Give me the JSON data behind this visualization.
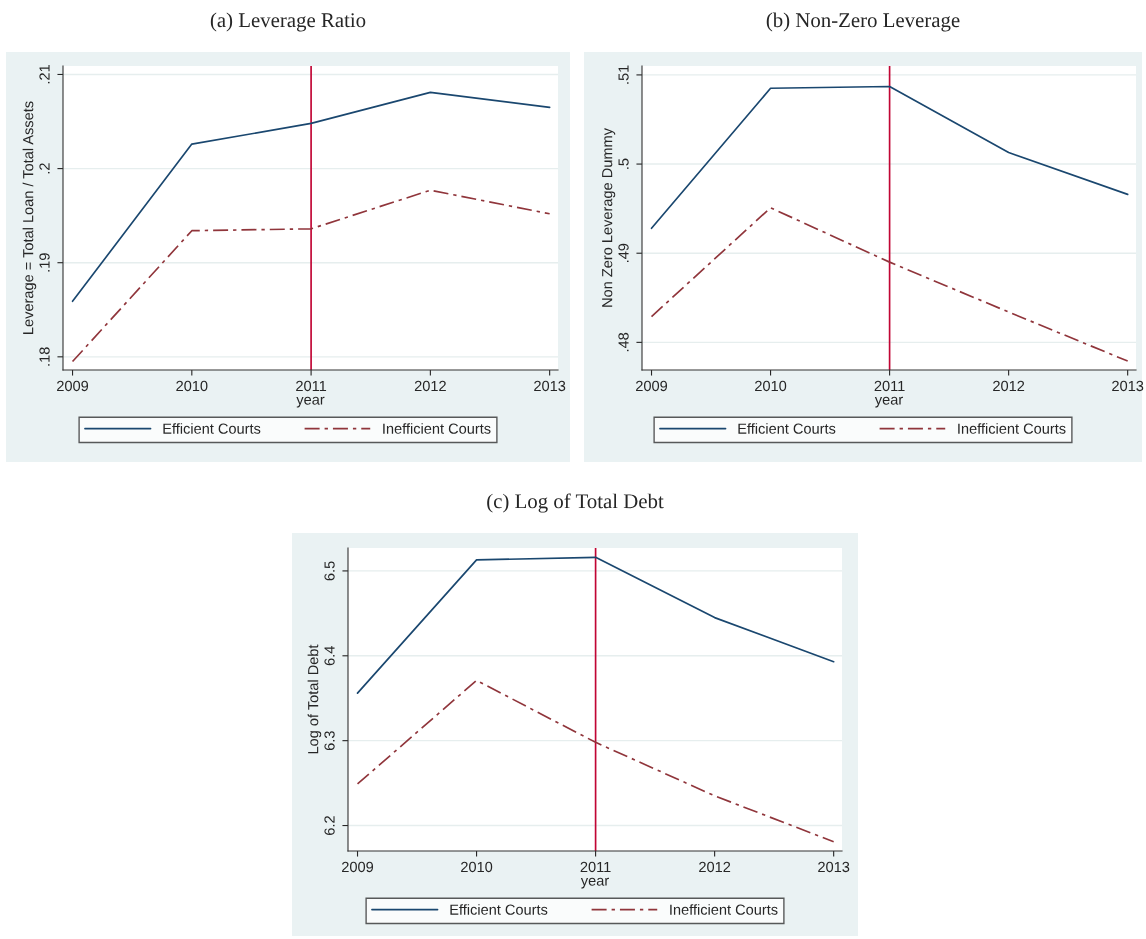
{
  "chart_data": [
    {
      "type": "line",
      "title": "(a) Leverage Ratio",
      "xlabel": "year",
      "ylabel": "Leverage = Total Loan / Total Assets",
      "x": [
        2009,
        2010,
        2011,
        2012,
        2013
      ],
      "xlim": [
        2008.92,
        2013.07
      ],
      "xticks": [
        2009,
        2010,
        2011,
        2012,
        2013
      ],
      "ylim": [
        0.1786,
        0.2109
      ],
      "yticks": [
        {
          "value": 0.18,
          "label": ".18"
        },
        {
          "value": 0.19,
          "label": ".19"
        },
        {
          "value": 0.2,
          "label": ".2"
        },
        {
          "value": 0.21,
          "label": ".21"
        }
      ],
      "grid": "y",
      "legend": "bottom",
      "marker": "none",
      "series": [
        {
          "name": "Efficient Courts",
          "color": "#1a476f",
          "line_style": "solid",
          "values": [
            0.1859,
            0.2026,
            0.2048,
            0.2081,
            0.2065
          ]
        },
        {
          "name": "Inefficient Courts",
          "color": "#90353b",
          "line_style": "dashed",
          "values": [
            0.1795,
            0.1934,
            0.1936,
            0.1977,
            0.1952
          ]
        }
      ],
      "ref_lines": [
        {
          "axis": "x",
          "value": 2011,
          "color": "#c10534",
          "line_style": "solid"
        }
      ]
    },
    {
      "type": "line",
      "title": "(b) Non-Zero Leverage",
      "xlabel": "year",
      "ylabel": "Non Zero Leverage Dummy",
      "x": [
        2009,
        2010,
        2011,
        2012,
        2013
      ],
      "xlim": [
        2008.92,
        2013.07
      ],
      "xticks": [
        2009,
        2010,
        2011,
        2012,
        2013
      ],
      "ylim": [
        0.4769,
        0.511
      ],
      "yticks": [
        {
          "value": 0.48,
          "label": ".48"
        },
        {
          "value": 0.49,
          "label": ".49"
        },
        {
          "value": 0.5,
          "label": ".5"
        },
        {
          "value": 0.51,
          "label": ".51"
        }
      ],
      "grid": "y",
      "legend": "bottom",
      "marker": "none",
      "series": [
        {
          "name": "Efficient Courts",
          "color": "#1a476f",
          "line_style": "solid",
          "values": [
            0.4928,
            0.5085,
            0.5087,
            0.5013,
            0.4966
          ]
        },
        {
          "name": "Inefficient Courts",
          "color": "#90353b",
          "line_style": "dashed",
          "values": [
            0.4829,
            0.4951,
            0.489,
            0.4834,
            0.4779
          ]
        }
      ],
      "ref_lines": [
        {
          "axis": "x",
          "value": 2011,
          "color": "#c10534",
          "line_style": "solid"
        }
      ]
    },
    {
      "type": "line",
      "title": "(c) Log of Total Debt",
      "xlabel": "year",
      "ylabel": "Log of Total Debt",
      "x": [
        2009,
        2010,
        2011,
        2012,
        2013
      ],
      "xlim": [
        2008.92,
        2013.07
      ],
      "xticks": [
        2009,
        2010,
        2011,
        2012,
        2013
      ],
      "ylim": [
        6.17,
        6.527
      ],
      "yticks": [
        6.2,
        6.3,
        6.4,
        6.5
      ],
      "grid": "y",
      "legend": "bottom",
      "marker": "none",
      "series": [
        {
          "name": "Efficient Courts",
          "color": "#1a476f",
          "line_style": "solid",
          "values": [
            6.356,
            6.513,
            6.516,
            6.445,
            6.393
          ]
        },
        {
          "name": "Inefficient Courts",
          "color": "#90353b",
          "line_style": "dashed",
          "values": [
            6.249,
            6.371,
            6.298,
            6.235,
            6.181
          ]
        }
      ],
      "ref_lines": [
        {
          "axis": "x",
          "value": 2011,
          "color": "#c10534",
          "line_style": "solid"
        }
      ]
    }
  ]
}
